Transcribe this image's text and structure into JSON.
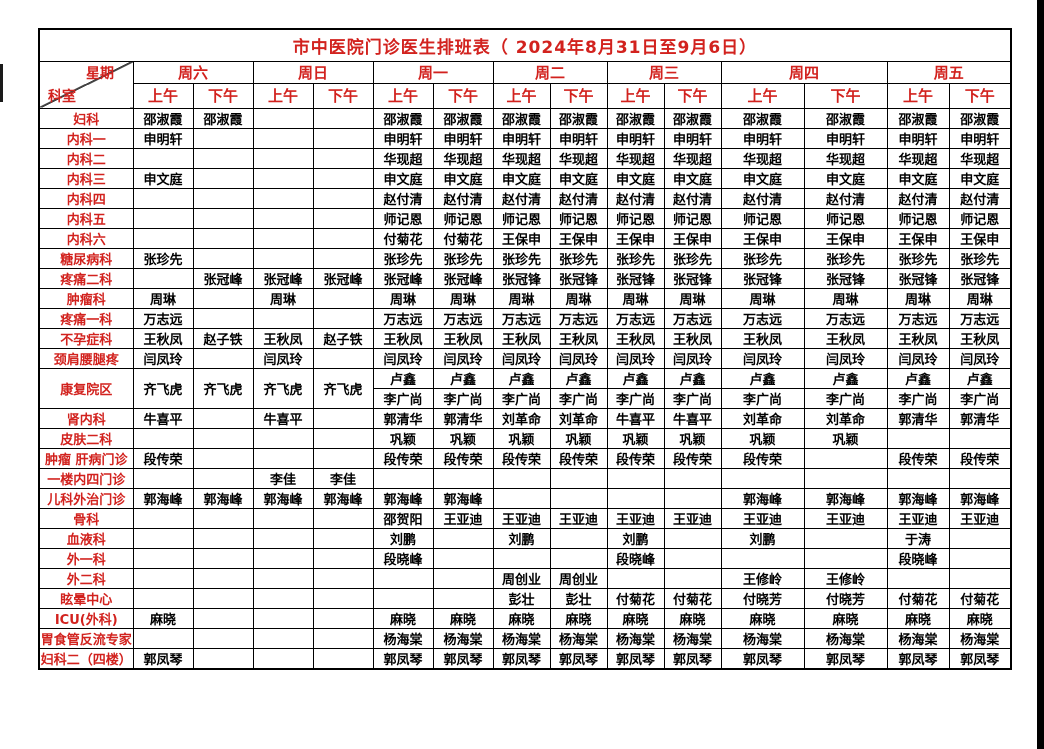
{
  "page": {
    "title": "市中医院门诊医生排班表（ 2024年8月31日至9月6日）"
  },
  "colors": {
    "accent_red": "#d2221e",
    "text_black": "#000000",
    "border_black": "#000000",
    "background": "#ffffff"
  },
  "header": {
    "corner_top": "星期",
    "corner_bottom": "科室",
    "days": [
      "周六",
      "周日",
      "周一",
      "周二",
      "周三",
      "周四",
      "周五"
    ],
    "session_am": "上午",
    "session_pm": "下午"
  },
  "schedule": {
    "column_keys": [
      "周六上午",
      "周六下午",
      "周日上午",
      "周日下午",
      "周一上午",
      "周一下午",
      "周二上午",
      "周二下午",
      "周三上午",
      "周三下午",
      "周四上午",
      "周四下午",
      "周五上午",
      "周五下午"
    ],
    "rows": [
      {
        "dept": "妇科",
        "cells": [
          "邵淑霞",
          "邵淑霞",
          "",
          "",
          "邵淑霞",
          "邵淑霞",
          "邵淑霞",
          "邵淑霞",
          "邵淑霞",
          "邵淑霞",
          "邵淑霞",
          "邵淑霞",
          "邵淑霞",
          "邵淑霞"
        ]
      },
      {
        "dept": "内科一",
        "cells": [
          "申明轩",
          "",
          "",
          "",
          "申明轩",
          "申明轩",
          "申明轩",
          "申明轩",
          "申明轩",
          "申明轩",
          "申明轩",
          "申明轩",
          "申明轩",
          "申明轩"
        ]
      },
      {
        "dept": "内科二",
        "cells": [
          "",
          "",
          "",
          "",
          "华现超",
          "华现超",
          "华现超",
          "华现超",
          "华现超",
          "华现超",
          "华现超",
          "华现超",
          "华现超",
          "华现超"
        ]
      },
      {
        "dept": "内科三",
        "cells": [
          "申文庭",
          "",
          "",
          "",
          "申文庭",
          "申文庭",
          "申文庭",
          "申文庭",
          "申文庭",
          "申文庭",
          "申文庭",
          "申文庭",
          "申文庭",
          "申文庭"
        ]
      },
      {
        "dept": "内科四",
        "cells": [
          "",
          "",
          "",
          "",
          "赵付清",
          "赵付清",
          "赵付清",
          "赵付清",
          "赵付清",
          "赵付清",
          "赵付清",
          "赵付清",
          "赵付清",
          "赵付清"
        ]
      },
      {
        "dept": "内科五",
        "cells": [
          "",
          "",
          "",
          "",
          "师记恩",
          "师记恩",
          "师记恩",
          "师记恩",
          "师记恩",
          "师记恩",
          "师记恩",
          "师记恩",
          "师记恩",
          "师记恩"
        ]
      },
      {
        "dept": "内科六",
        "cells": [
          "",
          "",
          "",
          "",
          "付菊花",
          "付菊花",
          "王保申",
          "王保申",
          "王保申",
          "王保申",
          "王保申",
          "王保申",
          "王保申",
          "王保申"
        ]
      },
      {
        "dept": "糖尿病科",
        "cells": [
          "张珍先",
          "",
          "",
          "",
          "张珍先",
          "张珍先",
          "张珍先",
          "张珍先",
          "张珍先",
          "张珍先",
          "张珍先",
          "张珍先",
          "张珍先",
          "张珍先"
        ]
      },
      {
        "dept": "疼痛二科",
        "cells": [
          "",
          "张冠峰",
          "张冠峰",
          "张冠峰",
          "张冠峰",
          "张冠峰",
          "张冠锋",
          "张冠锋",
          "张冠锋",
          "张冠锋",
          "张冠锋",
          "张冠锋",
          "张冠锋",
          "张冠锋"
        ]
      },
      {
        "dept": "肿瘤科",
        "cells": [
          "周琳",
          "",
          "周琳",
          "",
          "周琳",
          "周琳",
          "周琳",
          "周琳",
          "周琳",
          "周琳",
          "周琳",
          "周琳",
          "周琳",
          "周琳"
        ]
      },
      {
        "dept": "疼痛一科",
        "cells": [
          "万志远",
          "",
          "",
          "",
          "万志远",
          "万志远",
          "万志远",
          "万志远",
          "万志远",
          "万志远",
          "万志远",
          "万志远",
          "万志远",
          "万志远"
        ]
      },
      {
        "dept": "不孕症科",
        "cells": [
          "王秋凤",
          "赵子铁",
          "王秋凤",
          "赵子铁",
          "王秋凤",
          "王秋凤",
          "王秋凤",
          "王秋凤",
          "王秋凤",
          "王秋凤",
          "王秋凤",
          "王秋凤",
          "王秋凤",
          "王秋凤"
        ]
      },
      {
        "dept": "颈肩腰腿疼",
        "cells": [
          "闫凤玲",
          "",
          "闫凤玲",
          "",
          "闫凤玲",
          "闫凤玲",
          "闫凤玲",
          "闫凤玲",
          "闫凤玲",
          "闫凤玲",
          "闫凤玲",
          "闫凤玲",
          "闫凤玲",
          "闫凤玲"
        ]
      },
      {
        "dept": "康复院区",
        "type": "split",
        "weekend_cells": [
          "齐飞虎",
          "齐飞虎",
          "齐飞虎",
          "齐飞虎"
        ],
        "weekday_top": [
          "卢鑫",
          "卢鑫",
          "卢鑫",
          "卢鑫",
          "卢鑫",
          "卢鑫",
          "卢鑫",
          "卢鑫",
          "卢鑫",
          "卢鑫"
        ],
        "weekday_bottom": [
          "李广尚",
          "李广尚",
          "李广尚",
          "李广尚",
          "李广尚",
          "李广尚",
          "李广尚",
          "李广尚",
          "李广尚",
          "李广尚"
        ]
      },
      {
        "dept": "肾内科",
        "cells": [
          "牛喜平",
          "",
          "牛喜平",
          "",
          "郭清华",
          "郭清华",
          "刘革命",
          "刘革命",
          "牛喜平",
          "牛喜平",
          "刘革命",
          "刘革命",
          "郭清华",
          "郭清华"
        ]
      },
      {
        "dept": "皮肤二科",
        "cells": [
          "",
          "",
          "",
          "",
          "巩颖",
          "巩颖",
          "巩颖",
          "巩颖",
          "巩颖",
          "巩颖",
          "巩颖",
          "巩颖",
          "",
          ""
        ]
      },
      {
        "dept": "肿瘤 肝病门诊",
        "cells": [
          "段传荣",
          "",
          "",
          "",
          "段传荣",
          "段传荣",
          "段传荣",
          "段传荣",
          "段传荣",
          "段传荣",
          "段传荣",
          "",
          "段传荣",
          "段传荣"
        ]
      },
      {
        "dept": "一楼内四门诊",
        "cells": [
          "",
          "",
          "李佳",
          "李佳",
          "",
          "",
          "",
          "",
          "",
          "",
          "",
          "",
          "",
          ""
        ]
      },
      {
        "dept": "儿科外治门诊",
        "cells": [
          "郭海峰",
          "郭海峰",
          "郭海峰",
          "郭海峰",
          "郭海峰",
          "郭海峰",
          "",
          "",
          "",
          "",
          "郭海峰",
          "郭海峰",
          "郭海峰",
          "郭海峰"
        ]
      },
      {
        "dept": "骨科",
        "cells": [
          "",
          "",
          "",
          "",
          "邵贺阳",
          "王亚迪",
          "王亚迪",
          "王亚迪",
          "王亚迪",
          "王亚迪",
          "王亚迪",
          "王亚迪",
          "王亚迪",
          "王亚迪"
        ]
      },
      {
        "dept": "血液科",
        "cells": [
          "",
          "",
          "",
          "",
          "刘鹏",
          "",
          "刘鹏",
          "",
          "刘鹏",
          "",
          "刘鹏",
          "",
          "于涛",
          ""
        ]
      },
      {
        "dept": "外一科",
        "cells": [
          "",
          "",
          "",
          "",
          "段晓峰",
          "",
          "",
          "",
          "段晓峰",
          "",
          "",
          "",
          "段晓峰",
          ""
        ]
      },
      {
        "dept": "外二科",
        "cells": [
          "",
          "",
          "",
          "",
          "",
          "",
          "周创业",
          "周创业",
          "",
          "",
          "王修岭",
          "王修岭",
          "",
          ""
        ]
      },
      {
        "dept": "眩晕中心",
        "cells": [
          "",
          "",
          "",
          "",
          "",
          "",
          "彭壮",
          "彭壮",
          "付菊花",
          "付菊花",
          "付晓芳",
          "付晓芳",
          "付菊花",
          "付菊花"
        ]
      },
      {
        "dept": "ICU(外科)",
        "cells": [
          "麻晓",
          "",
          "",
          "",
          "麻晓",
          "麻晓",
          "麻晓",
          "麻晓",
          "麻晓",
          "麻晓",
          "麻晓",
          "麻晓",
          "麻晓",
          "麻晓"
        ]
      },
      {
        "dept": "胃食管反流专家",
        "cells": [
          "",
          "",
          "",
          "",
          "杨海棠",
          "杨海棠",
          "杨海棠",
          "杨海棠",
          "杨海棠",
          "杨海棠",
          "杨海棠",
          "杨海棠",
          "杨海棠",
          "杨海棠"
        ]
      },
      {
        "dept": "妇科二（四楼）",
        "cells": [
          "郭凤琴",
          "",
          "",
          "",
          "郭凤琴",
          "郭凤琴",
          "郭凤琴",
          "郭凤琴",
          "郭凤琴",
          "郭凤琴",
          "郭凤琴",
          "郭凤琴",
          "郭凤琴",
          "郭凤琴"
        ]
      }
    ]
  }
}
